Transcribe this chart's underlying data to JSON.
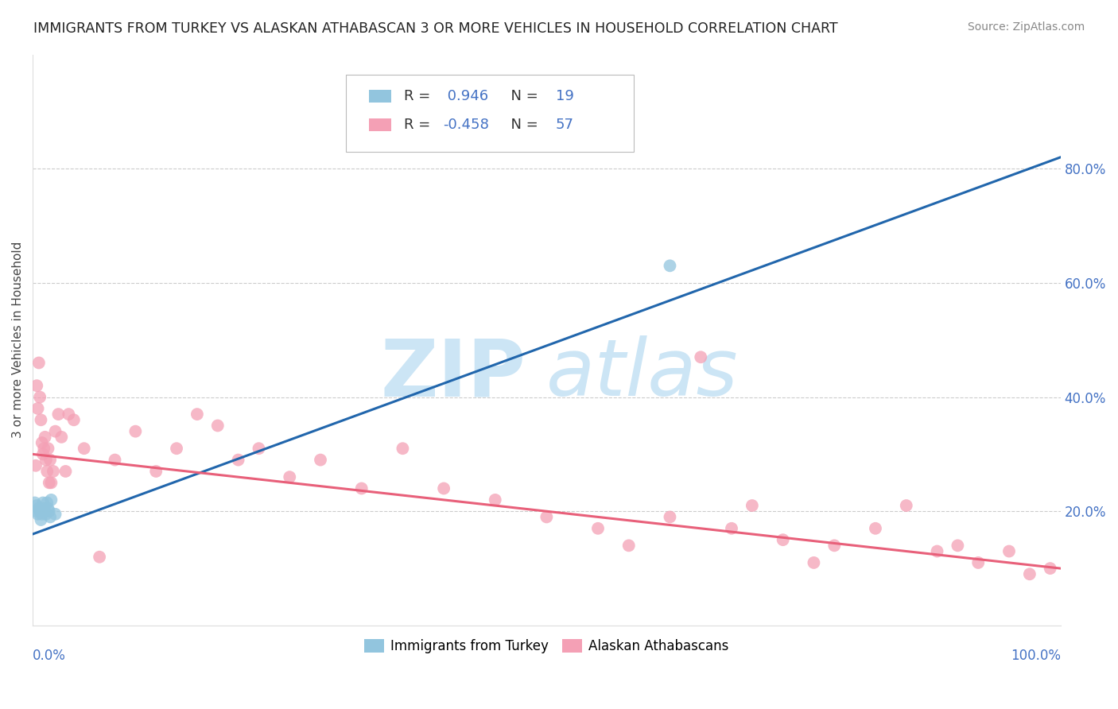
{
  "title": "IMMIGRANTS FROM TURKEY VS ALASKAN ATHABASCAN 3 OR MORE VEHICLES IN HOUSEHOLD CORRELATION CHART",
  "source": "Source: ZipAtlas.com",
  "ylabel": "3 or more Vehicles in Household",
  "blue_R": 0.946,
  "blue_N": 19,
  "pink_R": -0.458,
  "pink_N": 57,
  "blue_color": "#92c5de",
  "pink_color": "#f4a0b5",
  "blue_line_color": "#2166ac",
  "pink_line_color": "#e8607a",
  "watermark_zip": "ZIP",
  "watermark_atlas": "atlas",
  "watermark_color": "#cce5f5",
  "xlim": [
    0.0,
    1.0
  ],
  "ylim": [
    0.0,
    1.0
  ],
  "blue_scatter_x": [
    0.002,
    0.003,
    0.004,
    0.005,
    0.006,
    0.007,
    0.008,
    0.009,
    0.01,
    0.011,
    0.012,
    0.013,
    0.014,
    0.015,
    0.016,
    0.017,
    0.018,
    0.022,
    0.62
  ],
  "blue_scatter_y": [
    0.215,
    0.2,
    0.21,
    0.195,
    0.205,
    0.2,
    0.185,
    0.195,
    0.215,
    0.205,
    0.2,
    0.195,
    0.215,
    0.205,
    0.2,
    0.19,
    0.22,
    0.195,
    0.63
  ],
  "pink_scatter_x": [
    0.003,
    0.004,
    0.005,
    0.006,
    0.007,
    0.008,
    0.009,
    0.01,
    0.011,
    0.012,
    0.013,
    0.014,
    0.015,
    0.016,
    0.017,
    0.018,
    0.02,
    0.022,
    0.025,
    0.028,
    0.032,
    0.035,
    0.04,
    0.05,
    0.065,
    0.08,
    0.1,
    0.12,
    0.14,
    0.16,
    0.18,
    0.2,
    0.22,
    0.25,
    0.28,
    0.32,
    0.36,
    0.4,
    0.45,
    0.5,
    0.55,
    0.58,
    0.62,
    0.65,
    0.68,
    0.7,
    0.73,
    0.76,
    0.78,
    0.82,
    0.85,
    0.88,
    0.9,
    0.92,
    0.95,
    0.97,
    0.99
  ],
  "pink_scatter_y": [
    0.28,
    0.42,
    0.38,
    0.46,
    0.4,
    0.36,
    0.32,
    0.3,
    0.31,
    0.33,
    0.29,
    0.27,
    0.31,
    0.25,
    0.29,
    0.25,
    0.27,
    0.34,
    0.37,
    0.33,
    0.27,
    0.37,
    0.36,
    0.31,
    0.12,
    0.29,
    0.34,
    0.27,
    0.31,
    0.37,
    0.35,
    0.29,
    0.31,
    0.26,
    0.29,
    0.24,
    0.31,
    0.24,
    0.22,
    0.19,
    0.17,
    0.14,
    0.19,
    0.47,
    0.17,
    0.21,
    0.15,
    0.11,
    0.14,
    0.17,
    0.21,
    0.13,
    0.14,
    0.11,
    0.13,
    0.09,
    0.1
  ],
  "legend_label_blue": "Immigrants from Turkey",
  "legend_label_pink": "Alaskan Athabascans",
  "blue_line_x0": 0.0,
  "blue_line_y0": 0.16,
  "blue_line_x1": 1.0,
  "blue_line_y1": 0.82,
  "pink_line_x0": 0.0,
  "pink_line_y0": 0.3,
  "pink_line_x1": 1.0,
  "pink_line_y1": 0.1,
  "ytick_positions": [
    0.2,
    0.4,
    0.6,
    0.8
  ],
  "ytick_labels": [
    "20.0%",
    "40.0%",
    "60.0%",
    "80.0%"
  ],
  "tick_color": "#4472c4",
  "grid_color": "#cccccc",
  "background_color": "#ffffff"
}
